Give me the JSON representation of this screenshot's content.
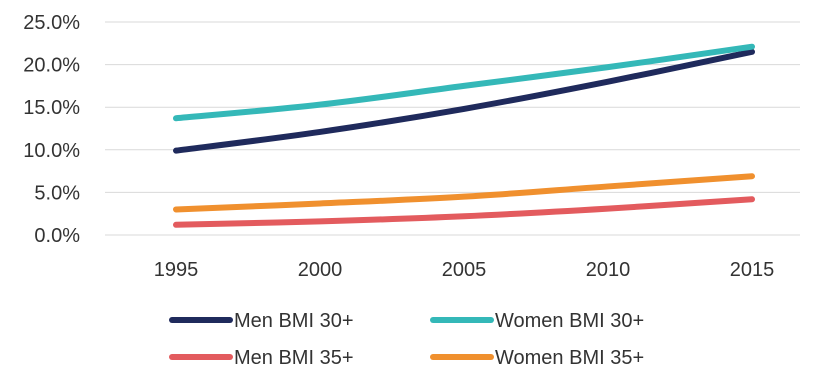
{
  "chart_data": {
    "type": "line",
    "title": "",
    "xlabel": "",
    "ylabel": "",
    "x": [
      1995,
      2000,
      2005,
      2010,
      2015
    ],
    "x_tick_labels": [
      "1995",
      "2000",
      "2005",
      "2010",
      "2015"
    ],
    "ylim": [
      0,
      0.25
    ],
    "y_ticks": [
      0,
      0.05,
      0.1,
      0.15,
      0.2,
      0.25
    ],
    "y_tick_labels": [
      "0.0%",
      "5.0%",
      "10.0%",
      "15.0%",
      "20.0%",
      "25.0%"
    ],
    "grid": "horizontal",
    "legend_position": "bottom",
    "series": [
      {
        "name": "Men BMI 30+",
        "color": "#1f2a5c",
        "values": [
          0.099,
          0.121,
          0.148,
          0.18,
          0.215
        ]
      },
      {
        "name": "Women BMI 30+",
        "color": "#34b8b8",
        "values": [
          0.137,
          0.153,
          0.175,
          0.197,
          0.221
        ]
      },
      {
        "name": "Men BMI 35+",
        "color": "#e35b5e",
        "values": [
          0.012,
          0.016,
          0.022,
          0.031,
          0.042
        ]
      },
      {
        "name": "Women BMI 35+",
        "color": "#f0902e",
        "values": [
          0.03,
          0.037,
          0.045,
          0.057,
          0.069
        ]
      }
    ]
  }
}
